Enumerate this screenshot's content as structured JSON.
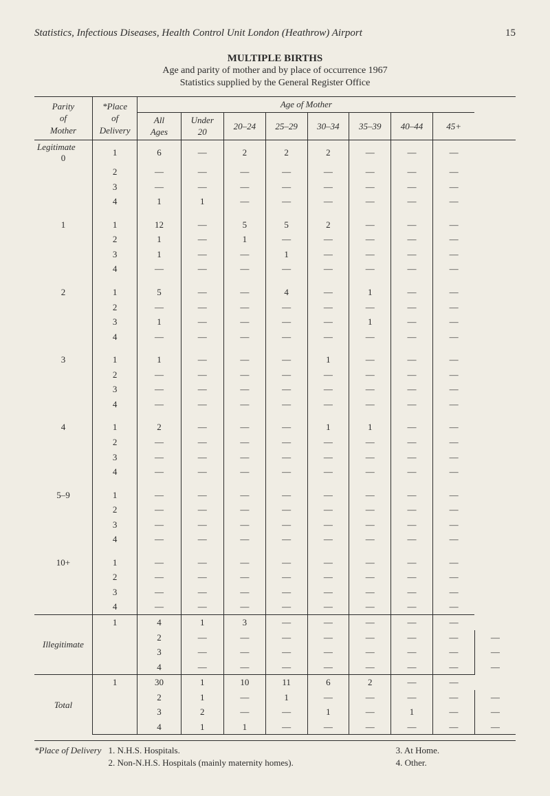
{
  "header": {
    "running_title": "Statistics, Infectious Diseases, Health Control Unit London (Heathrow) Airport",
    "page_number": "15"
  },
  "title": {
    "main": "MULTIPLE BIRTHS",
    "sub1": "Age and parity of mother and by place of occurrence 1967",
    "sub2": "Statistics supplied by the General Register Office"
  },
  "columns": {
    "parity": "Parity\nof\nMother",
    "place": "*Place\nof\nDelivery",
    "age_header": "Age of Mother",
    "age_subs": [
      "All\nAges",
      "Under\n20",
      "20–24",
      "25–29",
      "30–34",
      "35–39",
      "40–44",
      "45+"
    ]
  },
  "groups": [
    {
      "label": "Legitimate",
      "sections": [
        {
          "parity": "0",
          "rows": [
            {
              "place": "1",
              "cells": [
                "6",
                "—",
                "2",
                "2",
                "2",
                "—",
                "—",
                "—"
              ]
            },
            {
              "place": "2",
              "cells": [
                "—",
                "—",
                "—",
                "—",
                "—",
                "—",
                "—",
                "—"
              ]
            },
            {
              "place": "3",
              "cells": [
                "—",
                "—",
                "—",
                "—",
                "—",
                "—",
                "—",
                "—"
              ]
            },
            {
              "place": "4",
              "cells": [
                "1",
                "1",
                "—",
                "—",
                "—",
                "—",
                "—",
                "—"
              ]
            }
          ]
        },
        {
          "parity": "1",
          "rows": [
            {
              "place": "1",
              "cells": [
                "12",
                "—",
                "5",
                "5",
                "2",
                "—",
                "—",
                "—"
              ]
            },
            {
              "place": "2",
              "cells": [
                "1",
                "—",
                "1",
                "—",
                "—",
                "—",
                "—",
                "—"
              ]
            },
            {
              "place": "3",
              "cells": [
                "1",
                "—",
                "—",
                "1",
                "—",
                "—",
                "—",
                "—"
              ]
            },
            {
              "place": "4",
              "cells": [
                "—",
                "—",
                "—",
                "—",
                "—",
                "—",
                "—",
                "—"
              ]
            }
          ]
        },
        {
          "parity": "2",
          "rows": [
            {
              "place": "1",
              "cells": [
                "5",
                "—",
                "—",
                "4",
                "—",
                "1",
                "—",
                "—"
              ]
            },
            {
              "place": "2",
              "cells": [
                "—",
                "—",
                "—",
                "—",
                "—",
                "—",
                "—",
                "—"
              ]
            },
            {
              "place": "3",
              "cells": [
                "1",
                "—",
                "—",
                "—",
                "—",
                "1",
                "—",
                "—"
              ]
            },
            {
              "place": "4",
              "cells": [
                "—",
                "—",
                "—",
                "—",
                "—",
                "—",
                "—",
                "—"
              ]
            }
          ]
        },
        {
          "parity": "3",
          "rows": [
            {
              "place": "1",
              "cells": [
                "1",
                "—",
                "—",
                "—",
                "1",
                "—",
                "—",
                "—"
              ]
            },
            {
              "place": "2",
              "cells": [
                "—",
                "—",
                "—",
                "—",
                "—",
                "—",
                "—",
                "—"
              ]
            },
            {
              "place": "3",
              "cells": [
                "—",
                "—",
                "—",
                "—",
                "—",
                "—",
                "—",
                "—"
              ]
            },
            {
              "place": "4",
              "cells": [
                "—",
                "—",
                "—",
                "—",
                "—",
                "—",
                "—",
                "—"
              ]
            }
          ]
        },
        {
          "parity": "4",
          "rows": [
            {
              "place": "1",
              "cells": [
                "2",
                "—",
                "—",
                "—",
                "1",
                "1",
                "—",
                "—"
              ]
            },
            {
              "place": "2",
              "cells": [
                "—",
                "—",
                "—",
                "—",
                "—",
                "—",
                "—",
                "—"
              ]
            },
            {
              "place": "3",
              "cells": [
                "—",
                "—",
                "—",
                "—",
                "—",
                "—",
                "—",
                "—"
              ]
            },
            {
              "place": "4",
              "cells": [
                "—",
                "—",
                "—",
                "—",
                "—",
                "—",
                "—",
                "—"
              ]
            }
          ]
        },
        {
          "parity": "5–9",
          "rows": [
            {
              "place": "1",
              "cells": [
                "—",
                "—",
                "—",
                "—",
                "—",
                "—",
                "—",
                "—"
              ]
            },
            {
              "place": "2",
              "cells": [
                "—",
                "—",
                "—",
                "—",
                "—",
                "—",
                "—",
                "—"
              ]
            },
            {
              "place": "3",
              "cells": [
                "—",
                "—",
                "—",
                "—",
                "—",
                "—",
                "—",
                "—"
              ]
            },
            {
              "place": "4",
              "cells": [
                "—",
                "—",
                "—",
                "—",
                "—",
                "—",
                "—",
                "—"
              ]
            }
          ]
        },
        {
          "parity": "10+",
          "rows": [
            {
              "place": "1",
              "cells": [
                "—",
                "—",
                "—",
                "—",
                "—",
                "—",
                "—",
                "—"
              ]
            },
            {
              "place": "2",
              "cells": [
                "—",
                "—",
                "—",
                "—",
                "—",
                "—",
                "—",
                "—"
              ]
            },
            {
              "place": "3",
              "cells": [
                "—",
                "—",
                "—",
                "—",
                "—",
                "—",
                "—",
                "—"
              ]
            },
            {
              "place": "4",
              "cells": [
                "—",
                "—",
                "—",
                "—",
                "—",
                "—",
                "—",
                "—"
              ]
            }
          ]
        }
      ]
    },
    {
      "label": "Illegitimate",
      "sections": [
        {
          "parity": "",
          "rows": [
            {
              "place": "1",
              "cells": [
                "4",
                "1",
                "3",
                "—",
                "—",
                "—",
                "—",
                "—"
              ]
            },
            {
              "place": "2",
              "cells": [
                "—",
                "—",
                "—",
                "—",
                "—",
                "—",
                "—",
                "—"
              ]
            },
            {
              "place": "3",
              "cells": [
                "—",
                "—",
                "—",
                "—",
                "—",
                "—",
                "—",
                "—"
              ]
            },
            {
              "place": "4",
              "cells": [
                "—",
                "—",
                "—",
                "—",
                "—",
                "—",
                "—",
                "—"
              ]
            }
          ]
        }
      ]
    },
    {
      "label": "Total",
      "sections": [
        {
          "parity": "",
          "rows": [
            {
              "place": "1",
              "cells": [
                "30",
                "1",
                "10",
                "11",
                "6",
                "2",
                "—",
                "—"
              ]
            },
            {
              "place": "2",
              "cells": [
                "1",
                "—",
                "1",
                "—",
                "—",
                "—",
                "—",
                "—"
              ]
            },
            {
              "place": "3",
              "cells": [
                "2",
                "—",
                "—",
                "1",
                "—",
                "1",
                "—",
                "—"
              ]
            },
            {
              "place": "4",
              "cells": [
                "1",
                "1",
                "—",
                "—",
                "—",
                "—",
                "—",
                "—"
              ]
            }
          ]
        }
      ]
    }
  ],
  "footnote": {
    "lead": "*Place of Delivery",
    "defs": [
      "1.  N.H.S. Hospitals.",
      "3.  At Home.",
      "2.  Non-N.H.S. Hospitals (mainly maternity homes).",
      "4.  Other."
    ]
  }
}
